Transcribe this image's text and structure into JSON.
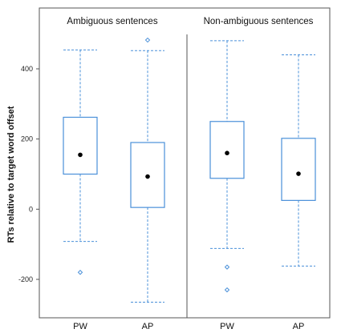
{
  "chart_data": {
    "type": "box",
    "ylabel": "RTs relative to target word offset",
    "yticks": [
      400,
      200,
      0,
      -200
    ],
    "ytick_labels": [
      "400",
      "200",
      "0",
      "-200"
    ],
    "ylim": [
      -325,
      490
    ],
    "panels": [
      {
        "title": "Ambiguous sentences",
        "boxes": [
          {
            "category": "PW",
            "whisker_low": -92,
            "q1": 100,
            "q3": 262,
            "whisker_high": 454,
            "mean": 155,
            "outliers": [
              -180
            ]
          },
          {
            "category": "AP",
            "whisker_low": -265,
            "q1": 5,
            "q3": 190,
            "whisker_high": 452,
            "mean": 93,
            "outliers": [
              482
            ]
          }
        ]
      },
      {
        "title": "Non-ambiguous sentences",
        "boxes": [
          {
            "category": "PW",
            "whisker_low": -112,
            "q1": 88,
            "q3": 250,
            "whisker_high": 480,
            "mean": 160,
            "outliers": [
              -165,
              -230
            ]
          },
          {
            "category": "AP",
            "whisker_low": -162,
            "q1": 25,
            "q3": 202,
            "whisker_high": 440,
            "mean": 101,
            "outliers": []
          }
        ]
      }
    ],
    "style": {
      "box_color": "#4a90d9",
      "whisker_color": "#4a90d9",
      "mean_color": "#000000",
      "frame_color": "#555555"
    }
  }
}
